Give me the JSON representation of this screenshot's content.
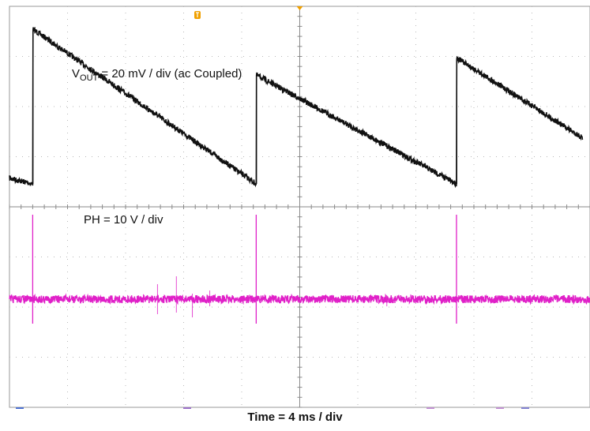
{
  "chart_data": {
    "type": "line",
    "title": "",
    "xlabel": "Time = 4 ms / div",
    "ylabel": "",
    "grid": true,
    "x_unit": "ms",
    "x_per_div": 4,
    "divisions": {
      "x": 10,
      "y": 8
    },
    "xlim": [
      0,
      40
    ],
    "series": [
      {
        "name": "VOUT",
        "label_main": "V",
        "label_sub": "OUT",
        "label_rest": " = 20 mV / div (ac Coupled)",
        "color": "#111111",
        "unit": "mV",
        "per_div": 20,
        "ylim": [
          -30,
          40
        ],
        "x": [
          0,
          1.6,
          1.62,
          17.0,
          17.02,
          30.8,
          30.82,
          39.5
        ],
        "y": [
          -20,
          -22,
          32,
          -22,
          16,
          -22,
          22,
          -6
        ]
      },
      {
        "name": "PH",
        "label_main": "PH = 10 V / div",
        "color": "#e020c8",
        "unit": "V",
        "per_div": 10,
        "baseline": 0,
        "spike_times": [
          1.6,
          17.0,
          30.8
        ]
      }
    ],
    "markers": {
      "trigger_color": "#f0a000"
    }
  }
}
